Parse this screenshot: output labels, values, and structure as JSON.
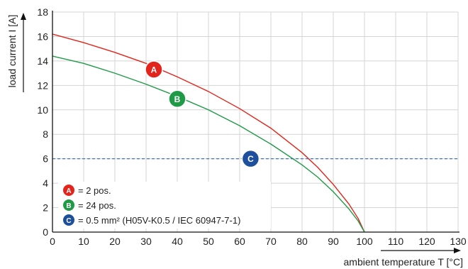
{
  "chart_data": {
    "type": "line",
    "xlabel": "ambient temperature T [°C]",
    "ylabel": "load current I [A]",
    "xlim": [
      0,
      130
    ],
    "ylim": [
      0,
      18
    ],
    "x_ticks": [
      0,
      10,
      20,
      30,
      40,
      50,
      60,
      70,
      80,
      90,
      100,
      110,
      120,
      130
    ],
    "y_ticks": [
      0,
      2,
      4,
      6,
      8,
      10,
      12,
      14,
      16,
      18
    ],
    "x_tick_labels": [
      "0",
      "10",
      "20",
      "30",
      "40",
      "50",
      "60",
      "70",
      "80",
      "90",
      "100",
      "110",
      "120",
      "130"
    ],
    "y_tick_labels": [
      "0",
      "2",
      "4",
      "6",
      "8",
      "10",
      "12",
      "14",
      "16",
      "18"
    ],
    "grid": true,
    "series": [
      {
        "id": "A",
        "name": "= 2 pos.",
        "color": "#e2241b",
        "style": "solid",
        "x": [
          0,
          10,
          20,
          30,
          40,
          50,
          60,
          70,
          80,
          85,
          90,
          95,
          98,
          100
        ],
        "y": [
          16.2,
          15.5,
          14.7,
          13.8,
          12.7,
          11.5,
          10.1,
          8.5,
          6.5,
          5.3,
          3.9,
          2.3,
          1.1,
          0
        ],
        "marker": {
          "label": "A",
          "x": 32.5,
          "y": 13.3
        }
      },
      {
        "id": "B",
        "name": "= 24 pos.",
        "color": "#1f9a47",
        "style": "solid",
        "x": [
          0,
          10,
          20,
          30,
          40,
          50,
          60,
          70,
          80,
          85,
          90,
          95,
          98,
          100
        ],
        "y": [
          14.4,
          13.8,
          13.0,
          12.1,
          11.1,
          10.0,
          8.7,
          7.2,
          5.5,
          4.5,
          3.3,
          1.9,
          0.9,
          0
        ],
        "marker": {
          "label": "B",
          "x": 40,
          "y": 10.9
        }
      },
      {
        "id": "C",
        "name": "= 0.5 mm² (H05V-K0.5 / IEC 60947-7-1)",
        "color": "#2b6cb8",
        "style": "dashed",
        "x": [
          0,
          130
        ],
        "y": [
          6.0,
          6.0
        ],
        "marker": {
          "label": "C",
          "x": 63.5,
          "y": 6.0
        }
      }
    ],
    "legend": {
      "placement": "bottom-left",
      "badge_colors": {
        "A": "#e2241b",
        "B": "#1f9a47",
        "C": "#1d4f9c"
      }
    }
  }
}
